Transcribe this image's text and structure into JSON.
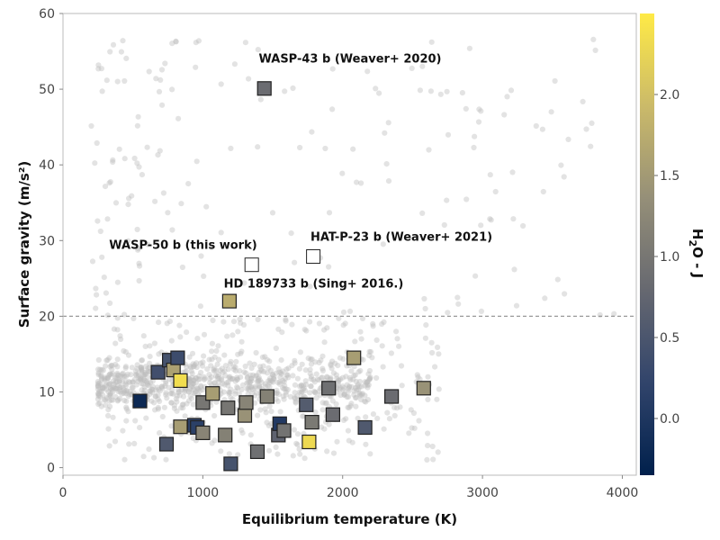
{
  "chart_data": {
    "type": "scatter",
    "title": "",
    "xlabel": "Equilibrium temperature (K)",
    "ylabel": "Surface gravity (m/s²)",
    "xlim": [
      0,
      4100
    ],
    "ylim": [
      -1,
      60
    ],
    "xticks": [
      0,
      1000,
      2000,
      3000,
      4000
    ],
    "yticks": [
      0,
      10,
      20,
      30,
      40,
      50,
      60
    ],
    "grid": false,
    "reference_line": {
      "y": 20,
      "style": "dashed"
    },
    "colorbar": {
      "label": "H2O - J",
      "label_main": "H",
      "label_sub": "2",
      "label_rest": "O - J",
      "range": [
        -0.35,
        2.5
      ],
      "ticks": [
        0.0,
        0.5,
        1.0,
        1.5,
        2.0
      ],
      "tick_labels": [
        "0.0",
        "0.5",
        "1.0",
        "1.5",
        "2.0"
      ],
      "colormap": [
        "#00204c",
        "#31446b",
        "#666870",
        "#958f78",
        "#cbba69",
        "#ffea46"
      ]
    },
    "background_series": {
      "name": "",
      "color": "#bdbdbd",
      "description_count": 1200,
      "dense_region": {
        "x_range": [
          250,
          2200
        ],
        "y_center": 11,
        "y_spread": 1.6
      },
      "sparse_region": {
        "x_range": [
          200,
          4000
        ],
        "y_range": [
          0,
          58
        ]
      }
    },
    "highlighted_series": {
      "name": "",
      "points": [
        {
          "x": 550,
          "y": 8.8,
          "c": -0.2
        },
        {
          "x": 680,
          "y": 12.6,
          "c": 0.4
        },
        {
          "x": 740,
          "y": 3.1,
          "c": 0.55
        },
        {
          "x": 760,
          "y": 14.2,
          "c": 0.45
        },
        {
          "x": 790,
          "y": 12.9,
          "c": 1.6
        },
        {
          "x": 820,
          "y": 14.5,
          "c": 0.35
        },
        {
          "x": 840,
          "y": 5.4,
          "c": 1.55
        },
        {
          "x": 840,
          "y": 11.5,
          "c": 2.35
        },
        {
          "x": 940,
          "y": 5.6,
          "c": 0.2
        },
        {
          "x": 960,
          "y": 5.3,
          "c": 0.15
        },
        {
          "x": 1000,
          "y": 4.6,
          "c": 1.2
        },
        {
          "x": 1000,
          "y": 8.6,
          "c": 1.0
        },
        {
          "x": 1070,
          "y": 9.8,
          "c": 1.55
        },
        {
          "x": 1160,
          "y": 4.3,
          "c": 1.15
        },
        {
          "x": 1180,
          "y": 7.9,
          "c": 1.0
        },
        {
          "x": 1190,
          "y": 22.0,
          "c": 1.75
        },
        {
          "x": 1200,
          "y": 0.5,
          "c": 0.45
        },
        {
          "x": 1300,
          "y": 6.9,
          "c": 1.4
        },
        {
          "x": 1310,
          "y": 8.6,
          "c": 1.2
        },
        {
          "x": 1350,
          "y": 26.8,
          "c": null
        },
        {
          "x": 1390,
          "y": 2.1,
          "c": 0.9
        },
        {
          "x": 1440,
          "y": 50.1,
          "c": 0.85
        },
        {
          "x": 1460,
          "y": 9.4,
          "c": 1.15
        },
        {
          "x": 1540,
          "y": 4.3,
          "c": 0.7
        },
        {
          "x": 1550,
          "y": 5.8,
          "c": 0.05
        },
        {
          "x": 1580,
          "y": 4.9,
          "c": 0.95
        },
        {
          "x": 1740,
          "y": 8.3,
          "c": 0.6
        },
        {
          "x": 1760,
          "y": 3.4,
          "c": 2.3
        },
        {
          "x": 1780,
          "y": 6.0,
          "c": 1.05
        },
        {
          "x": 1790,
          "y": 27.9,
          "c": null
        },
        {
          "x": 1900,
          "y": 10.5,
          "c": 0.9
        },
        {
          "x": 1930,
          "y": 7.0,
          "c": 0.85
        },
        {
          "x": 2080,
          "y": 14.5,
          "c": 1.55
        },
        {
          "x": 2160,
          "y": 5.3,
          "c": 0.55
        },
        {
          "x": 2350,
          "y": 9.4,
          "c": 0.85
        },
        {
          "x": 2580,
          "y": 10.5,
          "c": 1.4
        }
      ]
    },
    "annotations": [
      {
        "text": "WASP-43 b (Weaver+ 2020)",
        "x": 1400,
        "y": 53.5
      },
      {
        "text": "WASP-50 b (this work)",
        "x": 330,
        "y": 28.9
      },
      {
        "text": "HAT-P-23 b (Weaver+ 2021)",
        "x": 1770,
        "y": 30.0
      },
      {
        "text": "HD 189733 b (Sing+ 2016.)",
        "x": 1150,
        "y": 23.8
      }
    ]
  }
}
